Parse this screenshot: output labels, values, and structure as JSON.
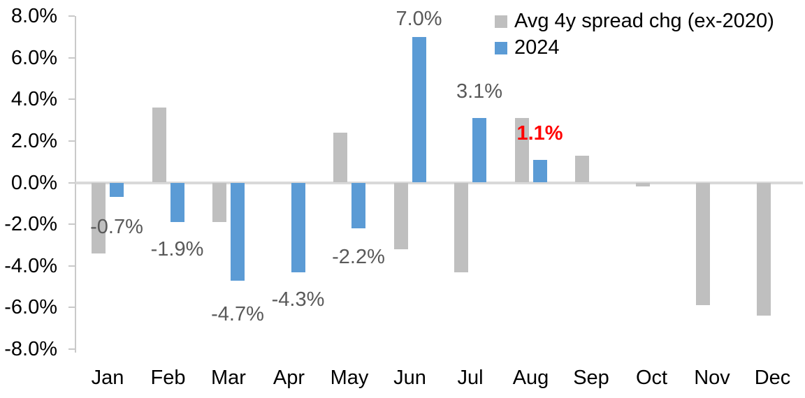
{
  "chart_data": {
    "type": "bar",
    "title": "",
    "categories": [
      "Jan",
      "Feb",
      "Mar",
      "Apr",
      "May",
      "Jun",
      "Jul",
      "Aug",
      "Sep",
      "Oct",
      "Nov",
      "Dec"
    ],
    "series": [
      {
        "name": "Avg 4y spread chg (ex-2020)",
        "color": "#BFBFBF",
        "values": [
          -3.4,
          3.6,
          -1.9,
          0.0,
          2.4,
          -3.2,
          -4.3,
          3.1,
          1.3,
          -0.2,
          -5.9,
          -6.4
        ]
      },
      {
        "name": "2024",
        "color": "#5B9BD5",
        "values": [
          -0.7,
          -1.9,
          -4.7,
          -4.3,
          -2.2,
          7.0,
          3.1,
          1.1,
          null,
          null,
          null,
          null
        ]
      }
    ],
    "data_labels": [
      {
        "category": "Jan",
        "series": "2024",
        "text": "-0.7%",
        "color": "#595959",
        "bold": false
      },
      {
        "category": "Feb",
        "series": "2024",
        "text": "-1.9%",
        "color": "#595959",
        "bold": false
      },
      {
        "category": "Mar",
        "series": "2024",
        "text": "-4.7%",
        "color": "#595959",
        "bold": false
      },
      {
        "category": "Apr",
        "series": "2024",
        "text": "-4.3%",
        "color": "#595959",
        "bold": false
      },
      {
        "category": "May",
        "series": "2024",
        "text": "-2.2%",
        "color": "#595959",
        "bold": false
      },
      {
        "category": "Jun",
        "series": "2024",
        "text": "7.0%",
        "color": "#595959",
        "bold": false
      },
      {
        "category": "Jul",
        "series": "2024",
        "text": "3.1%",
        "color": "#595959",
        "bold": false
      },
      {
        "category": "Aug",
        "series": "2024",
        "text": "1.1%",
        "color": "#FF0000",
        "bold": true
      }
    ],
    "y_axis": {
      "min": -8,
      "max": 8,
      "step": 2,
      "tick_labels": [
        "8.0%",
        "6.0%",
        "4.0%",
        "2.0%",
        "0.0%",
        "-2.0%",
        "-4.0%",
        "-6.0%",
        "-8.0%"
      ]
    },
    "x_axis": {
      "tick_labels": [
        "Jan",
        "Feb",
        "Mar",
        "Apr",
        "May",
        "Jun",
        "Jul",
        "Aug",
        "Sep",
        "Oct",
        "Nov",
        "Dec"
      ]
    },
    "legend_position": "top-right",
    "grid": false
  },
  "colors": {
    "gray_series": "#BFBFBF",
    "blue_series": "#5B9BD5",
    "axis_line": "#C9C9C9",
    "zero_line": "#D9D9D9",
    "label_gray": "#595959",
    "label_red": "#FF0000",
    "text": "#000000",
    "background": "#FFFFFF"
  }
}
